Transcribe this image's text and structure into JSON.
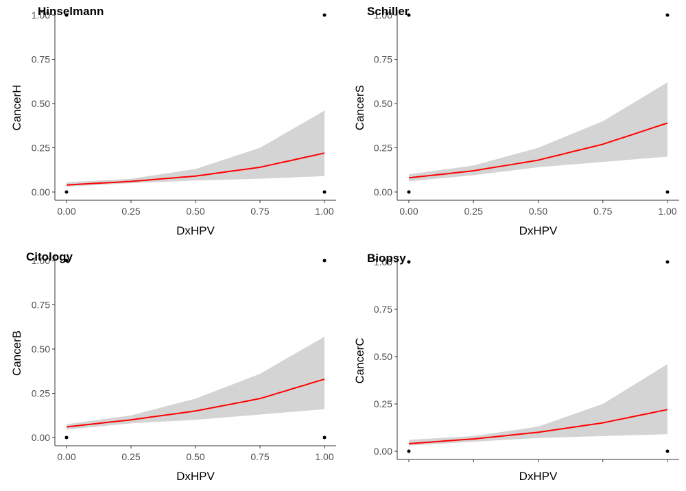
{
  "chart_data": [
    {
      "type": "line",
      "title": "Hinselmann",
      "xlabel": "DxHPV",
      "ylabel": "CancerH",
      "xlim": [
        0,
        1
      ],
      "ylim": [
        0,
        1
      ],
      "xticks": [
        "0.00",
        "0.25",
        "0.50",
        "0.75",
        "1.00"
      ],
      "yticks": [
        "0.00",
        "0.25",
        "0.50",
        "0.75",
        "1.00"
      ],
      "show_x_tick_labels": true,
      "grid": false,
      "fit": {
        "x": [
          0,
          0.25,
          0.5,
          0.75,
          1.0
        ],
        "y": [
          0.04,
          0.06,
          0.09,
          0.14,
          0.22
        ]
      },
      "ci_lower": [
        0.03,
        0.05,
        0.065,
        0.075,
        0.09
      ],
      "ci_upper": [
        0.055,
        0.075,
        0.13,
        0.25,
        0.46
      ],
      "points": [
        {
          "x": 0,
          "y": 0
        },
        {
          "x": 0,
          "y": 1
        },
        {
          "x": 1,
          "y": 0
        },
        {
          "x": 1,
          "y": 1
        }
      ]
    },
    {
      "type": "line",
      "title": "Schiller",
      "xlabel": "DxHPV",
      "ylabel": "CancerS",
      "xlim": [
        0,
        1
      ],
      "ylim": [
        0,
        1
      ],
      "xticks": [
        "0.00",
        "0.25",
        "0.50",
        "0.75",
        "1.00"
      ],
      "yticks": [
        "0.00",
        "0.25",
        "0.50",
        "0.75",
        "1.00"
      ],
      "show_x_tick_labels": true,
      "grid": false,
      "fit": {
        "x": [
          0,
          0.25,
          0.5,
          0.75,
          1.0
        ],
        "y": [
          0.08,
          0.12,
          0.18,
          0.27,
          0.39
        ]
      },
      "ci_lower": [
        0.06,
        0.095,
        0.14,
        0.17,
        0.2
      ],
      "ci_upper": [
        0.1,
        0.15,
        0.25,
        0.4,
        0.62
      ],
      "points": [
        {
          "x": 0,
          "y": 0
        },
        {
          "x": 0,
          "y": 1
        },
        {
          "x": 1,
          "y": 0
        },
        {
          "x": 1,
          "y": 1
        }
      ]
    },
    {
      "type": "line",
      "title": "Citology",
      "xlabel": "DxHPV",
      "ylabel": "CancerB",
      "xlim": [
        0,
        1
      ],
      "ylim": [
        0,
        1
      ],
      "xticks": [
        "0.00",
        "0.25",
        "0.50",
        "0.75",
        "1.00"
      ],
      "yticks": [
        "0.00",
        "0.25",
        "0.50",
        "0.75",
        "1.00"
      ],
      "show_x_tick_labels": true,
      "grid": false,
      "fit": {
        "x": [
          0,
          0.25,
          0.5,
          0.75,
          1.0
        ],
        "y": [
          0.06,
          0.1,
          0.15,
          0.22,
          0.33
        ]
      },
      "ci_lower": [
        0.045,
        0.08,
        0.1,
        0.13,
        0.16
      ],
      "ci_upper": [
        0.075,
        0.125,
        0.22,
        0.36,
        0.57
      ],
      "points": [
        {
          "x": 0,
          "y": 0
        },
        {
          "x": 0,
          "y": 1
        },
        {
          "x": 1,
          "y": 0
        },
        {
          "x": 1,
          "y": 1
        }
      ]
    },
    {
      "type": "line",
      "title": "Biopsy",
      "xlabel": "DxHPV",
      "ylabel": "CancerC",
      "xlim": [
        0,
        1
      ],
      "ylim": [
        0,
        1
      ],
      "xticks": [
        "",
        "",
        "",
        "",
        ""
      ],
      "yticks": [
        "0.00",
        "0.25",
        "0.50",
        "0.75",
        "1.00"
      ],
      "show_x_tick_labels": false,
      "grid": false,
      "fit": {
        "x": [
          0,
          0.25,
          0.5,
          0.75,
          1.0
        ],
        "y": [
          0.04,
          0.065,
          0.1,
          0.15,
          0.22
        ]
      },
      "ci_lower": [
        0.03,
        0.05,
        0.07,
        0.08,
        0.09
      ],
      "ci_upper": [
        0.06,
        0.08,
        0.13,
        0.25,
        0.46
      ],
      "points": [
        {
          "x": 0,
          "y": 0
        },
        {
          "x": 0,
          "y": 1
        },
        {
          "x": 1,
          "y": 0
        },
        {
          "x": 1,
          "y": 1
        }
      ]
    }
  ],
  "colors": {
    "fit_line": "#ff0000",
    "ci_band": "#d4d4d4",
    "points": "#000000",
    "axis": "#333333"
  }
}
